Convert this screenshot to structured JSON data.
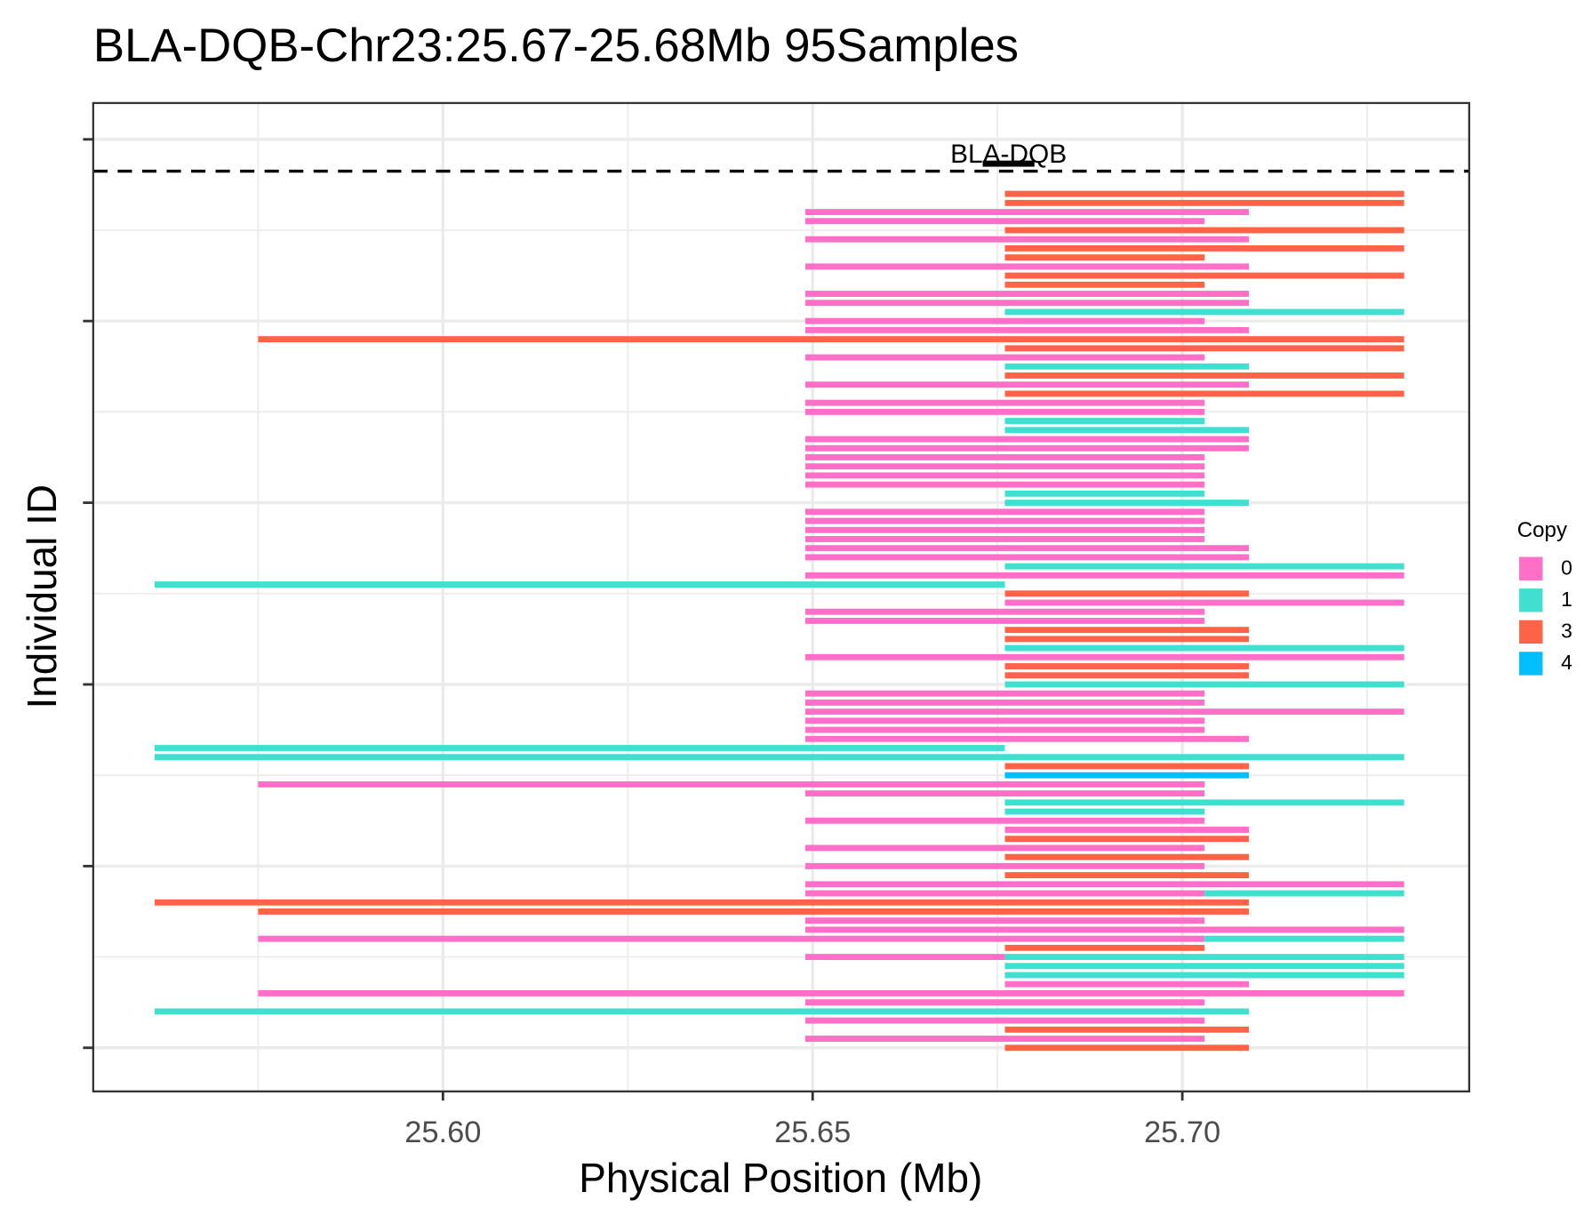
{
  "chart_data": {
    "type": "segment",
    "title": "BLA-DQB-Chr23:25.67-25.68Mb 95Samples",
    "x_label": "Physical Position (Mb)",
    "y_label": "Individual ID",
    "legend_title": "Copy",
    "xlim": [
      25.5527,
      25.7388
    ],
    "xticks": [
      {
        "value": 25.6,
        "label": "25.60"
      },
      {
        "value": 25.65,
        "label": "25.65"
      },
      {
        "value": 25.7,
        "label": "25.70"
      }
    ],
    "ylim": [
      -4.8,
      104
    ],
    "yticks": [
      0,
      20,
      40,
      60,
      80,
      100
    ],
    "grid": true,
    "hline": 96.5,
    "gene": {
      "label": "BLA-DQB",
      "start": 25.673,
      "end": 25.68,
      "row": 98
    },
    "series": [
      {
        "name": "0",
        "color": "#ff6ec7",
        "rows": [
          92,
          91,
          89,
          86,
          83,
          82,
          80,
          79,
          76,
          73,
          71,
          70,
          67,
          66,
          65,
          64,
          63,
          62,
          59,
          58,
          57,
          56,
          55,
          54,
          52,
          49,
          48,
          47,
          43,
          39,
          38,
          37,
          36,
          35,
          34,
          29,
          28,
          25,
          24,
          22,
          20,
          18,
          17,
          14,
          13,
          12,
          10,
          7,
          6,
          5,
          3,
          1
        ],
        "starts": [
          25.649,
          25.649,
          25.649,
          25.649,
          25.649,
          25.649,
          25.649,
          25.649,
          25.649,
          25.649,
          25.649,
          25.649,
          25.649,
          25.649,
          25.649,
          25.649,
          25.649,
          25.649,
          25.649,
          25.649,
          25.649,
          25.649,
          25.649,
          25.649,
          25.649,
          25.676,
          25.649,
          25.649,
          25.649,
          25.649,
          25.649,
          25.649,
          25.649,
          25.649,
          25.649,
          25.575,
          25.649,
          25.649,
          25.676,
          25.649,
          25.649,
          25.649,
          25.649,
          25.649,
          25.649,
          25.575,
          25.649,
          25.676,
          25.575,
          25.649,
          25.649,
          25.649
        ],
        "ends": [
          25.709,
          25.703,
          25.709,
          25.709,
          25.709,
          25.709,
          25.703,
          25.709,
          25.703,
          25.709,
          25.703,
          25.703,
          25.709,
          25.709,
          25.703,
          25.703,
          25.703,
          25.703,
          25.703,
          25.703,
          25.703,
          25.703,
          25.709,
          25.709,
          25.73,
          25.73,
          25.703,
          25.703,
          25.73,
          25.703,
          25.703,
          25.73,
          25.703,
          25.703,
          25.709,
          25.703,
          25.703,
          25.703,
          25.709,
          25.703,
          25.703,
          25.73,
          25.703,
          25.703,
          25.73,
          25.703,
          25.676,
          25.709,
          25.73,
          25.703,
          25.703,
          25.703
        ]
      },
      {
        "name": "1",
        "color": "#40e0d0",
        "rows": [
          81,
          75,
          69,
          68,
          61,
          60,
          53,
          51,
          44,
          40,
          33,
          32,
          27,
          26,
          17,
          12,
          10,
          9,
          8,
          4
        ],
        "starts": [
          25.676,
          25.676,
          25.676,
          25.676,
          25.676,
          25.676,
          25.676,
          25.561,
          25.676,
          25.676,
          25.561,
          25.561,
          25.676,
          25.676,
          25.703,
          25.703,
          25.676,
          25.676,
          25.676,
          25.561
        ],
        "ends": [
          25.73,
          25.709,
          25.703,
          25.709,
          25.703,
          25.709,
          25.73,
          25.676,
          25.73,
          25.73,
          25.676,
          25.73,
          25.73,
          25.703,
          25.73,
          25.73,
          25.73,
          25.73,
          25.73,
          25.709
        ]
      },
      {
        "name": "3",
        "color": "#ff6347",
        "rows": [
          94,
          93,
          90,
          88,
          87,
          85,
          84,
          78,
          77,
          74,
          72,
          50,
          46,
          45,
          42,
          41,
          31,
          23,
          21,
          19,
          16,
          15,
          11,
          2,
          0
        ],
        "starts": [
          25.676,
          25.676,
          25.676,
          25.676,
          25.676,
          25.676,
          25.676,
          25.575,
          25.676,
          25.676,
          25.676,
          25.676,
          25.676,
          25.676,
          25.676,
          25.676,
          25.676,
          25.676,
          25.676,
          25.676,
          25.561,
          25.575,
          25.676,
          25.676,
          25.676
        ],
        "ends": [
          25.73,
          25.73,
          25.73,
          25.73,
          25.703,
          25.73,
          25.703,
          25.73,
          25.73,
          25.73,
          25.73,
          25.709,
          25.709,
          25.709,
          25.709,
          25.709,
          25.709,
          25.709,
          25.709,
          25.709,
          25.709,
          25.709,
          25.703,
          25.709,
          25.709
        ]
      },
      {
        "name": "4",
        "color": "#00bfff",
        "rows": [
          30
        ],
        "starts": [
          25.676
        ],
        "ends": [
          25.709
        ]
      }
    ]
  }
}
